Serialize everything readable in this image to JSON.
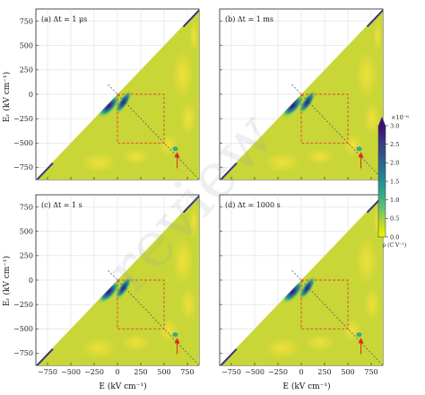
{
  "chart_data": {
    "type": "heatmap",
    "xlabel": "E (kV cm⁻¹)",
    "ylabel": "Eᵣ (kV cm⁻¹)",
    "xlim": [
      -875,
      875
    ],
    "ylim": [
      -875,
      875
    ],
    "xticks": [
      "−750",
      "−500",
      "−250",
      "0",
      "250",
      "500",
      "750"
    ],
    "yticks": [
      "750",
      "500",
      "250",
      "0",
      "−250",
      "−500",
      "−750"
    ],
    "panels": [
      {
        "label": "(a)   Δt = 1 μs",
        "features": [
          [
            600,
            600,
            -780,
            -840,
            600,
            1.0
          ],
          [
            -300,
            -610,
            430,
            450,
            560,
            0.8
          ]
        ]
      },
      {
        "label": "(b)   Δt = 1 ms",
        "features": [
          [
            600,
            600,
            -780,
            -840,
            600,
            1.0
          ],
          [
            -300,
            -610,
            430,
            450,
            560,
            0.8
          ]
        ]
      },
      {
        "label": "(c)   Δt = 1 s",
        "features": [
          [
            600,
            600,
            -780,
            -840,
            600,
            1.0
          ],
          [
            -300,
            -610,
            430,
            450,
            560,
            0.8
          ]
        ]
      },
      {
        "label": "(d)   Δt = 1000 s",
        "features": [
          [
            600,
            600,
            -780,
            -840,
            600,
            1.0
          ],
          [
            -300,
            -610,
            430,
            450,
            560,
            0.8
          ]
        ]
      }
    ],
    "dashed_box": {
      "x": [
        0,
        500
      ],
      "y": [
        -500,
        0
      ]
    },
    "colorbar": {
      "label": "ρ (C V⁻¹)",
      "exponent": "×10⁻⁸",
      "ticks": [
        "3.0",
        "2.5",
        "2.0",
        "1.5",
        "1.0",
        "0.5",
        "0.0"
      ],
      "range": [
        0,
        3.0
      ],
      "colors": [
        "#f2f200",
        "#b7db2c",
        "#6cc36a",
        "#36ab88",
        "#22908f",
        "#2a6f8d",
        "#34508a",
        "#3a3483",
        "#3b0f6e"
      ]
    },
    "colors": {
      "background": "#c8d637",
      "light_patch": "#f5dd2e",
      "box": "#e8402a",
      "arrow": "#e02a1a",
      "diagonal": "#4a4a6a"
    }
  },
  "watermark": "review"
}
